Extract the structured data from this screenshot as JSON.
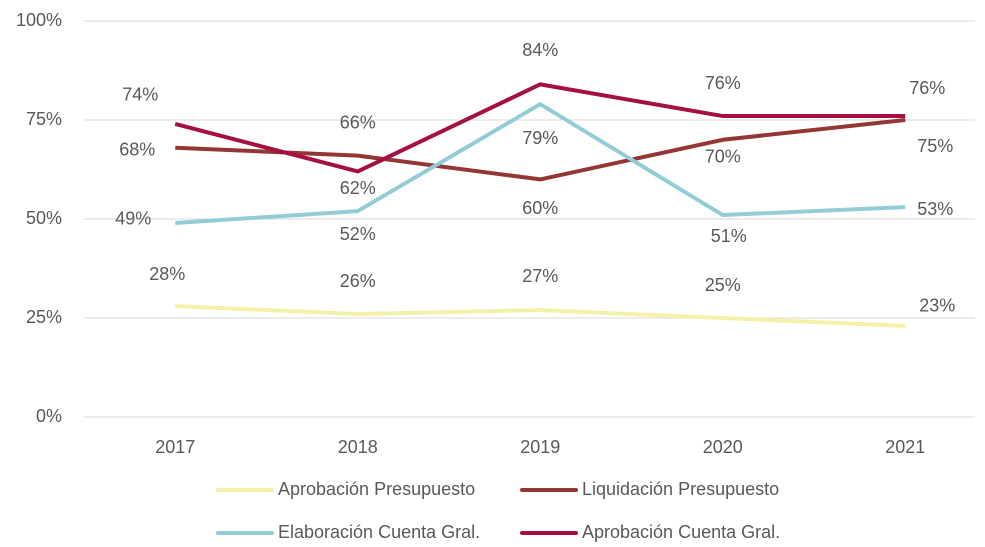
{
  "chart_data": {
    "type": "line",
    "categories": [
      "2017",
      "2018",
      "2019",
      "2020",
      "2021"
    ],
    "series": [
      {
        "name": "Aprobación Presupuesto",
        "color": "#f5f0a8",
        "values": [
          28,
          26,
          27,
          25,
          23
        ],
        "value_labels": [
          "28%",
          "26%",
          "27%",
          "25%",
          "23%"
        ]
      },
      {
        "name": "Liquidación Presupuesto",
        "color": "#943634",
        "values": [
          68,
          66,
          60,
          70,
          75
        ],
        "value_labels": [
          "68%",
          "66%",
          "60%",
          "70%",
          "75%"
        ]
      },
      {
        "name": "Elaboración Cuenta Gral.",
        "color": "#92cdd6",
        "values": [
          49,
          52,
          79,
          51,
          53
        ],
        "value_labels": [
          "49%",
          "52%",
          "79%",
          "51%",
          "53%"
        ]
      },
      {
        "name": "Aprobación Cuenta Gral.",
        "color": "#a50f45",
        "values": [
          74,
          62,
          84,
          76,
          76
        ],
        "value_labels": [
          "74%",
          "62%",
          "84%",
          "76%",
          "76%"
        ]
      }
    ],
    "ylim": [
      0,
      100
    ],
    "yticks": [
      {
        "value": 0,
        "label": "0%"
      },
      {
        "value": 25,
        "label": "25%"
      },
      {
        "value": 50,
        "label": "50%"
      },
      {
        "value": 75,
        "label": "75%"
      },
      {
        "value": 100,
        "label": "100%"
      }
    ],
    "grid": true,
    "legend": "bottom"
  }
}
